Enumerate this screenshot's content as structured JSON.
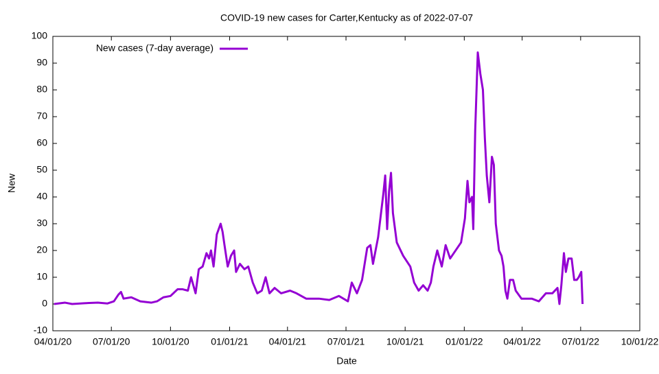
{
  "chart_data": {
    "type": "line",
    "title": "COVID-19 new cases for Carter,Kentucky as of 2022-07-07",
    "x_label": "Date",
    "y_label": "New",
    "xlim": [
      "2020-04-01",
      "2022-10-01"
    ],
    "xticks": [
      {
        "value": "2020-04-01",
        "label": "04/01/20"
      },
      {
        "value": "2020-07-01",
        "label": "07/01/20"
      },
      {
        "value": "2020-10-01",
        "label": "10/01/20"
      },
      {
        "value": "2021-01-01",
        "label": "01/01/21"
      },
      {
        "value": "2021-04-01",
        "label": "04/01/21"
      },
      {
        "value": "2021-07-01",
        "label": "07/01/21"
      },
      {
        "value": "2021-10-01",
        "label": "10/01/21"
      },
      {
        "value": "2022-01-01",
        "label": "01/01/22"
      },
      {
        "value": "2022-04-01",
        "label": "04/01/22"
      },
      {
        "value": "2022-07-01",
        "label": "07/01/22"
      },
      {
        "value": "2022-10-01",
        "label": "10/01/22"
      }
    ],
    "ylim": [
      -10,
      100
    ],
    "yticks": [
      -10,
      0,
      10,
      20,
      30,
      40,
      50,
      60,
      70,
      80,
      90,
      100
    ],
    "legend": "top-left",
    "x": [
      "2020-04-03",
      "2020-04-20",
      "2020-05-01",
      "2020-05-20",
      "2020-06-10",
      "2020-06-25",
      "2020-07-05",
      "2020-07-12",
      "2020-07-16",
      "2020-07-20",
      "2020-08-01",
      "2020-08-15",
      "2020-09-01",
      "2020-09-10",
      "2020-09-20",
      "2020-10-01",
      "2020-10-12",
      "2020-10-20",
      "2020-10-28",
      "2020-11-02",
      "2020-11-09",
      "2020-11-14",
      "2020-11-20",
      "2020-11-26",
      "2020-11-30",
      "2020-12-03",
      "2020-12-07",
      "2020-12-12",
      "2020-12-18",
      "2020-12-21",
      "2020-12-24",
      "2020-12-29",
      "2021-01-03",
      "2021-01-08",
      "2021-01-11",
      "2021-01-17",
      "2021-01-24",
      "2021-01-30",
      "2021-02-06",
      "2021-02-13",
      "2021-02-20",
      "2021-02-26",
      "2021-03-04",
      "2021-03-12",
      "2021-03-22",
      "2021-04-05",
      "2021-04-15",
      "2021-04-30",
      "2021-05-20",
      "2021-06-05",
      "2021-06-20",
      "2021-07-04",
      "2021-07-10",
      "2021-07-18",
      "2021-07-26",
      "2021-08-03",
      "2021-08-08",
      "2021-08-12",
      "2021-08-20",
      "2021-08-24",
      "2021-08-28",
      "2021-08-31",
      "2021-09-03",
      "2021-09-06",
      "2021-09-09",
      "2021-09-12",
      "2021-09-18",
      "2021-09-28",
      "2021-10-09",
      "2021-10-15",
      "2021-10-22",
      "2021-10-29",
      "2021-11-05",
      "2021-11-10",
      "2021-11-14",
      "2021-11-20",
      "2021-11-27",
      "2021-12-03",
      "2021-12-10",
      "2021-12-27",
      "2022-01-02",
      "2022-01-06",
      "2022-01-09",
      "2022-01-13",
      "2022-01-15",
      "2022-01-18",
      "2022-01-22",
      "2022-01-26",
      "2022-01-30",
      "2022-02-02",
      "2022-02-05",
      "2022-02-09",
      "2022-02-13",
      "2022-02-16",
      "2022-02-19",
      "2022-02-24",
      "2022-02-28",
      "2022-03-03",
      "2022-03-06",
      "2022-03-09",
      "2022-03-13",
      "2022-03-18",
      "2022-03-22",
      "2022-03-31",
      "2022-04-16",
      "2022-04-27",
      "2022-05-08",
      "2022-05-18",
      "2022-05-26",
      "2022-05-29",
      "2022-06-01",
      "2022-06-05",
      "2022-06-08",
      "2022-06-12",
      "2022-06-17",
      "2022-06-21",
      "2022-06-25",
      "2022-06-28",
      "2022-07-02",
      "2022-07-04"
    ],
    "series": [
      {
        "name": "New cases (7-day average)",
        "color": "#9400d3",
        "values": [
          0,
          0.5,
          0,
          0.3,
          0.5,
          0.2,
          1,
          3.5,
          4.5,
          2,
          2.5,
          1,
          0.5,
          1,
          2.5,
          3,
          5.5,
          5.5,
          5,
          10,
          4,
          13,
          14,
          19,
          17,
          20,
          14,
          26,
          30,
          27,
          22,
          14,
          18,
          20,
          12,
          15,
          13,
          14,
          8,
          4,
          5,
          10,
          4,
          6,
          4,
          5,
          4,
          2,
          2,
          1.5,
          3,
          1,
          8,
          4,
          9,
          21,
          22,
          15,
          25,
          33,
          41,
          48,
          28,
          42,
          49,
          34,
          23,
          18,
          14,
          8,
          5,
          7,
          5,
          8,
          14,
          20,
          14,
          22,
          17,
          23,
          32,
          46,
          38,
          40,
          28,
          65,
          94,
          86,
          80,
          62,
          48,
          38,
          55,
          52,
          30,
          20,
          18,
          14,
          5,
          2,
          9,
          9,
          5,
          2,
          2,
          1,
          4,
          4,
          6,
          0,
          7,
          19,
          12,
          17,
          17,
          9,
          9,
          10,
          12,
          0
        ]
      }
    ]
  }
}
